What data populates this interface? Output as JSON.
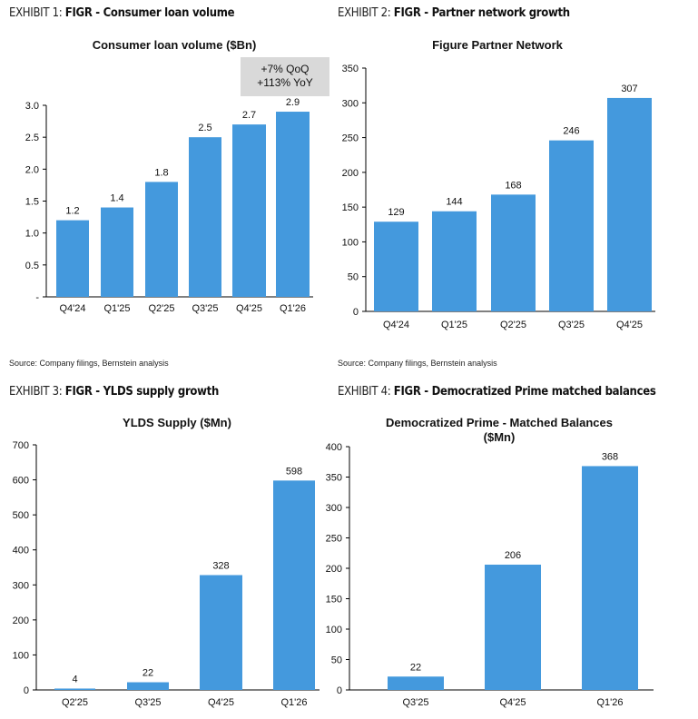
{
  "exhibits": [
    {
      "label": "EXHIBIT 1:",
      "title": "FIGR - Consumer loan volume",
      "source": "Source: Company filings, Bernstein analysis"
    },
    {
      "label": "EXHIBIT 2:",
      "title": "FIGR - Partner network growth",
      "source": "Source: Company filings, Bernstein analysis"
    },
    {
      "label": "EXHIBIT 3:",
      "title": "FIGR - YLDS supply growth"
    },
    {
      "label": "EXHIBIT 4:",
      "title": "FIGR - Democratized Prime matched balances"
    }
  ],
  "colors": {
    "bar": "#4499DD",
    "annotation_bg": "#D9D9D9"
  },
  "chart_data": [
    {
      "type": "bar",
      "title": "Consumer loan volume ($Bn)",
      "categories": [
        "Q4'24",
        "Q1'25",
        "Q2'25",
        "Q3'25",
        "Q4'25",
        "Q1'26"
      ],
      "values": [
        1.2,
        1.4,
        1.8,
        2.5,
        2.7,
        2.9
      ],
      "data_labels": [
        "1.2",
        "1.4",
        "1.8",
        "2.5",
        "2.7",
        "2.9"
      ],
      "ylim": [
        0,
        3.0
      ],
      "yticks": [
        "-",
        "0.5",
        "1.0",
        "1.5",
        "2.0",
        "2.5",
        "3.0"
      ],
      "annotation": [
        "+7% QoQ",
        "+113% YoY"
      ],
      "grid": false
    },
    {
      "type": "bar",
      "title": "Figure Partner Network",
      "categories": [
        "Q4'24",
        "Q1'25",
        "Q2'25",
        "Q3'25",
        "Q4'25"
      ],
      "values": [
        129,
        144,
        168,
        246,
        307
      ],
      "data_labels": [
        "129",
        "144",
        "168",
        "246",
        "307"
      ],
      "ylim": [
        0,
        350
      ],
      "yticks": [
        "0",
        "50",
        "100",
        "150",
        "200",
        "250",
        "300",
        "350"
      ],
      "grid": false
    },
    {
      "type": "bar",
      "title": "YLDS Supply ($Mn)",
      "categories": [
        "Q2'25",
        "Q3'25",
        "Q4'25",
        "Q1'26"
      ],
      "values": [
        4,
        22,
        328,
        598
      ],
      "data_labels": [
        "4",
        "22",
        "328",
        "598"
      ],
      "ylim": [
        0,
        700
      ],
      "yticks": [
        "0",
        "100",
        "200",
        "300",
        "400",
        "500",
        "600",
        "700"
      ],
      "grid": false
    },
    {
      "type": "bar",
      "title": [
        "Democratized Prime - Matched Balances",
        "($Mn)"
      ],
      "categories": [
        "Q3'25",
        "Q4'25",
        "Q1'26"
      ],
      "values": [
        22,
        206,
        368
      ],
      "data_labels": [
        "22",
        "206",
        "368"
      ],
      "ylim": [
        0,
        400
      ],
      "yticks": [
        "0",
        "50",
        "100",
        "150",
        "200",
        "250",
        "300",
        "350",
        "400"
      ],
      "grid": false
    }
  ]
}
